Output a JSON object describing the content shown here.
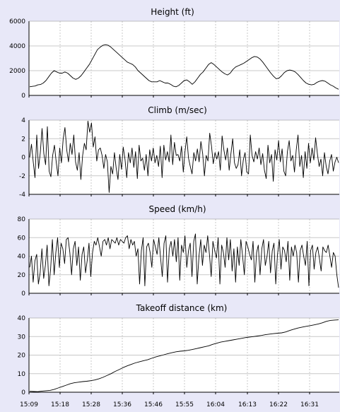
{
  "colors": {
    "background": "#e8e8f8",
    "plot_bg": "#ffffff",
    "line": "#000000",
    "grid": "#c8c8c8"
  },
  "x_axis": {
    "tick_labels": [
      "15:09",
      "15:18",
      "15:28",
      "15:36",
      "15:46",
      "15:55",
      "16:04",
      "16:13",
      "16:22",
      "16:31"
    ]
  },
  "chart_data": [
    {
      "type": "line",
      "title": "Height (ft)",
      "ylim": [
        0,
        6000
      ],
      "yticks": [
        "0",
        "2000",
        "4000",
        "6000"
      ],
      "grid": true,
      "series": [
        {
          "values": [
            700,
            730,
            760,
            850,
            880,
            1000,
            1200,
            1500,
            1800,
            2000,
            1900,
            1800,
            1800,
            1900,
            1800,
            1600,
            1400,
            1300,
            1400,
            1600,
            1900,
            2200,
            2500,
            2900,
            3300,
            3700,
            3900,
            4050,
            4100,
            4050,
            3900,
            3700,
            3500,
            3300,
            3100,
            2900,
            2700,
            2600,
            2500,
            2300,
            2000,
            1800,
            1600,
            1400,
            1200,
            1100,
            1100,
            1100,
            1200,
            1100,
            1000,
            1000,
            900,
            750,
            700,
            800,
            1000,
            1200,
            1250,
            1100,
            900,
            1100,
            1400,
            1700,
            1900,
            2200,
            2500,
            2650,
            2500,
            2300,
            2100,
            1900,
            1750,
            1650,
            1800,
            2100,
            2300,
            2400,
            2500,
            2600,
            2750,
            2900,
            3050,
            3150,
            3100,
            2950,
            2700,
            2400,
            2100,
            1800,
            1550,
            1350,
            1400,
            1600,
            1850,
            2000,
            2050,
            2000,
            1900,
            1700,
            1450,
            1200,
            1000,
            900,
            850,
            900,
            1050,
            1150,
            1200,
            1150,
            1000,
            850,
            750,
            600,
            500
          ]
        }
      ]
    },
    {
      "type": "line",
      "title": "Climb (m/sec)",
      "ylim": [
        -4,
        4
      ],
      "yticks": [
        "-4",
        "-2",
        "0",
        "2",
        "4"
      ],
      "grid": true,
      "series": [
        {
          "values": [
            0,
            1.4,
            -0.5,
            -2.2,
            2.4,
            -1.2,
            0.5,
            3.1,
            0.4,
            -0.8,
            3.3,
            -1.5,
            -2.1,
            0.2,
            1.3,
            -0.5,
            -2.0,
            1.0,
            -0.6,
            2.0,
            3.2,
            0.8,
            -0.5,
            1.5,
            0.3,
            2.4,
            -0.5,
            -1.4,
            0.5,
            -2.4,
            0.2,
            1.5,
            0.8,
            3.9,
            2.7,
            3.7,
            1.1,
            2.2,
            -0.4,
            0.8,
            1.0,
            0.2,
            -1.2,
            0.3,
            -0.5,
            -3.8,
            -1.0,
            -1.8,
            0.5,
            -1.2,
            -2.4,
            0.3,
            -1.3,
            1.1,
            -0.2,
            -2.2,
            0.5,
            -0.6,
            1.0,
            -1.1,
            0.6,
            -2.3,
            1.3,
            -0.4,
            -0.1,
            -1.4,
            0.3,
            -2.0,
            0.8,
            -0.4,
            1.0,
            -0.6,
            0.2,
            -1.0,
            1.2,
            -2.2,
            1.3,
            -0.3,
            0.6,
            -0.5,
            2.4,
            -0.8,
            1.6,
            0.2,
            0.3,
            -0.4,
            1.2,
            -1.6,
            0.6,
            2.2,
            -0.1,
            -1.0,
            -1.8,
            0.5,
            -0.4,
            0.9,
            -0.5,
            1.7,
            0.4,
            -2.0,
            0.2,
            -0.4,
            2.6,
            1.2,
            -0.7,
            0.5,
            -0.2,
            0.6,
            -1.4,
            2.3,
            0.8,
            -0.3,
            1.0,
            -1.4,
            0.4,
            2.0,
            -0.6,
            -1.2,
            -0.8,
            0.8,
            -2.0,
            -0.3,
            0.5,
            -1.6,
            -1.8,
            2.4,
            0.2,
            -0.5,
            0.6,
            -0.2,
            1.0,
            -0.8,
            0.4,
            -1.4,
            -2.3,
            1.3,
            -0.6,
            0.3,
            -2.6,
            0.8,
            -0.3,
            1.8,
            -0.5,
            0.9,
            -1.5,
            -2.0,
            0.6,
            1.8,
            -0.4,
            0.2,
            -1.6,
            0.8,
            2.4,
            -1.0,
            0.2,
            -2.2,
            0.6,
            -1.2,
            1.5,
            -0.6,
            1.0,
            -0.3,
            2.1,
            0.4,
            -1.0,
            -0.2,
            -2.0,
            0.5,
            -1.0,
            -1.8,
            -0.4,
            0.3,
            -1.5,
            -0.5,
            0.0,
            -0.6
          ]
        }
      ]
    },
    {
      "type": "line",
      "title": "Speed (km/h)",
      "ylim": [
        0,
        80
      ],
      "yticks": [
        "0",
        "20",
        "40",
        "60",
        "80"
      ],
      "grid": true,
      "series": [
        {
          "values": [
            28,
            40,
            12,
            35,
            42,
            10,
            22,
            48,
            16,
            30,
            52,
            8,
            26,
            58,
            20,
            44,
            60,
            28,
            54,
            48,
            32,
            58,
            60,
            44,
            20,
            48,
            56,
            30,
            50,
            14,
            42,
            50,
            22,
            36,
            54,
            18,
            44,
            56,
            52,
            60,
            50,
            40,
            56,
            58,
            52,
            60,
            48,
            58,
            56,
            54,
            60,
            52,
            58,
            56,
            54,
            60,
            62,
            48,
            58,
            52,
            56,
            40,
            48,
            10,
            46,
            60,
            8,
            50,
            54,
            44,
            28,
            58,
            50,
            42,
            60,
            38,
            18,
            54,
            62,
            12,
            48,
            56,
            40,
            58,
            34,
            60,
            14,
            52,
            44,
            62,
            28,
            46,
            54,
            18,
            56,
            64,
            10,
            40,
            58,
            30,
            52,
            44,
            62,
            42,
            18,
            56,
            46,
            38,
            60,
            10,
            52,
            44,
            28,
            60,
            36,
            58,
            24,
            48,
            12,
            50,
            30,
            58,
            40,
            20,
            56,
            50,
            42,
            36,
            56,
            12,
            44,
            52,
            20,
            48,
            58,
            30,
            40,
            56,
            22,
            46,
            54,
            10,
            42,
            58,
            26,
            50,
            46,
            34,
            56,
            14,
            50,
            40,
            52,
            44,
            12,
            46,
            52,
            40,
            30,
            56,
            8,
            46,
            52,
            26,
            44,
            50,
            38,
            24,
            50,
            46,
            44,
            52,
            40,
            28,
            44,
            40,
            20,
            6
          ]
        }
      ]
    },
    {
      "type": "line",
      "title": "Takeoff distance (km)",
      "ylim": [
        0,
        40
      ],
      "yticks": [
        "0",
        "10",
        "20",
        "30",
        "40"
      ],
      "grid": true,
      "series": [
        {
          "values": [
            0.5,
            0.4,
            0.3,
            0.6,
            0.8,
            1.0,
            1.5,
            2.3,
            3.0,
            3.8,
            4.6,
            5.1,
            5.4,
            5.7,
            5.9,
            6.2,
            6.6,
            7.2,
            8.0,
            9.0,
            10.0,
            11.2,
            12.2,
            13.3,
            14.2,
            15.0,
            15.8,
            16.4,
            17.0,
            17.5,
            18.3,
            19.0,
            19.6,
            20.2,
            20.8,
            21.3,
            21.8,
            22.1,
            22.3,
            22.6,
            23.0,
            23.5,
            24.0,
            24.5,
            25.0,
            25.8,
            26.4,
            27.0,
            27.4,
            27.8,
            28.2,
            28.6,
            29.0,
            29.4,
            29.7,
            30.0,
            30.3,
            30.6,
            31.0,
            31.3,
            31.6,
            31.8,
            32.0,
            32.5,
            33.3,
            34.0,
            34.6,
            35.1,
            35.5,
            35.9,
            36.3,
            36.8,
            37.4,
            38.2,
            38.7,
            38.9,
            39.0
          ]
        }
      ]
    }
  ]
}
